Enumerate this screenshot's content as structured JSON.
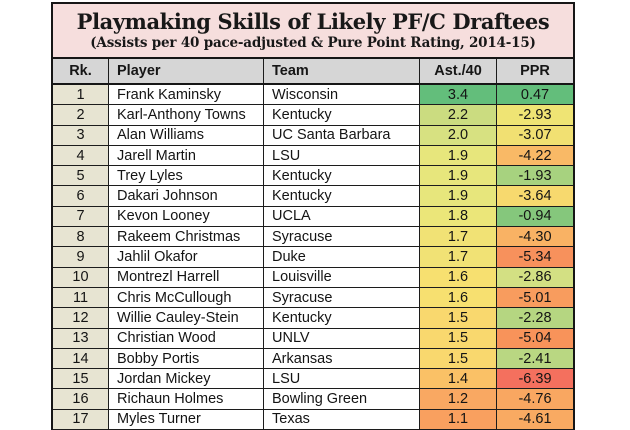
{
  "chart_data": {
    "type": "table",
    "title": "Playmaking Skills of Likely PF/C Draftees",
    "subtitle": "(Assists per 40 pace-adjusted & Pure Point Rating, 2014-15)",
    "columns": [
      "Rk.",
      "Player",
      "Team",
      "Ast./40",
      "PPR"
    ],
    "style": {
      "title_bg": "#f6dedd",
      "header_bg": "#d6d6d6",
      "rank_col_bg": "#e7e4d2",
      "good_color": "#63be7b",
      "mid_color": "#f7e070",
      "bad_color": "#f4705e"
    },
    "rows": [
      {
        "rank": "1",
        "player": "Frank Kaminsky",
        "team": "Wisconsin",
        "ast40": "3.4",
        "ppr": "0.47",
        "ast40_color": "#63be7b",
        "ppr_color": "#63be7b"
      },
      {
        "rank": "2",
        "player": "Karl-Anthony Towns",
        "team": "Kentucky",
        "ast40": "2.2",
        "ppr": "-2.93",
        "ast40_color": "#cbdc80",
        "ppr_color": "#efe474"
      },
      {
        "rank": "3",
        "player": "Alan Williams",
        "team": "UC Santa Barbara",
        "ast40": "2.0",
        "ppr": "-3.07",
        "ast40_color": "#d7e181",
        "ppr_color": "#f1e072"
      },
      {
        "rank": "4",
        "player": "Jarell Martin",
        "team": "LSU",
        "ast40": "1.9",
        "ppr": "-4.22",
        "ast40_color": "#e7e67c",
        "ppr_color": "#f9b966"
      },
      {
        "rank": "5",
        "player": "Trey Lyles",
        "team": "Kentucky",
        "ast40": "1.9",
        "ppr": "-1.93",
        "ast40_color": "#e7e67c",
        "ppr_color": "#a7d27f"
      },
      {
        "rank": "6",
        "player": "Dakari Johnson",
        "team": "Kentucky",
        "ast40": "1.9",
        "ppr": "-3.64",
        "ast40_color": "#e7e67c",
        "ppr_color": "#f7d96e"
      },
      {
        "rank": "7",
        "player": "Kevon Looney",
        "team": "UCLA",
        "ast40": "1.8",
        "ppr": "-0.94",
        "ast40_color": "#ebe679",
        "ppr_color": "#85c77c"
      },
      {
        "rank": "8",
        "player": "Rakeem Christmas",
        "team": "Syracuse",
        "ast40": "1.7",
        "ppr": "-4.30",
        "ast40_color": "#f1e275",
        "ppr_color": "#f9b264"
      },
      {
        "rank": "9",
        "player": "Jahlil Okafor",
        "team": "Duke",
        "ast40": "1.7",
        "ppr": "-5.34",
        "ast40_color": "#f1e275",
        "ppr_color": "#f7915c"
      },
      {
        "rank": "10",
        "player": "Montrezl Harrell",
        "team": "Louisville",
        "ast40": "1.6",
        "ppr": "-2.86",
        "ast40_color": "#f7e070",
        "ppr_color": "#d3e083"
      },
      {
        "rank": "11",
        "player": "Chris McCullough",
        "team": "Syracuse",
        "ast40": "1.6",
        "ppr": "-5.01",
        "ast40_color": "#f7e070",
        "ppr_color": "#f89c5e"
      },
      {
        "rank": "12",
        "player": "Willie Cauley-Stein",
        "team": "Kentucky",
        "ast40": "1.5",
        "ppr": "-2.28",
        "ast40_color": "#f9d86e",
        "ppr_color": "#b5d681"
      },
      {
        "rank": "13",
        "player": "Christian Wood",
        "team": "UNLV",
        "ast40": "1.5",
        "ppr": "-5.04",
        "ast40_color": "#f9d86e",
        "ppr_color": "#f8935a"
      },
      {
        "rank": "14",
        "player": "Bobby Portis",
        "team": "Arkansas",
        "ast40": "1.5",
        "ppr": "-2.41",
        "ast40_color": "#f9d86e",
        "ppr_color": "#b9d782"
      },
      {
        "rank": "15",
        "player": "Jordan Mickey",
        "team": "LSU",
        "ast40": "1.4",
        "ppr": "-6.39",
        "ast40_color": "#fac166",
        "ppr_color": "#f4705e"
      },
      {
        "rank": "16",
        "player": "Richaun Holmes",
        "team": "Bowling Green",
        "ast40": "1.2",
        "ppr": "-4.76",
        "ast40_color": "#f9a862",
        "ppr_color": "#f9a761"
      },
      {
        "rank": "17",
        "player": "Myles Turner",
        "team": "Texas",
        "ast40": "1.1",
        "ppr": "-4.61",
        "ast40_color": "#f9a05f",
        "ppr_color": "#f9aa62"
      }
    ],
    "clipped_row": {
      "ast40_color": "#fbc968",
      "ppr_color": "#f5825c"
    }
  }
}
